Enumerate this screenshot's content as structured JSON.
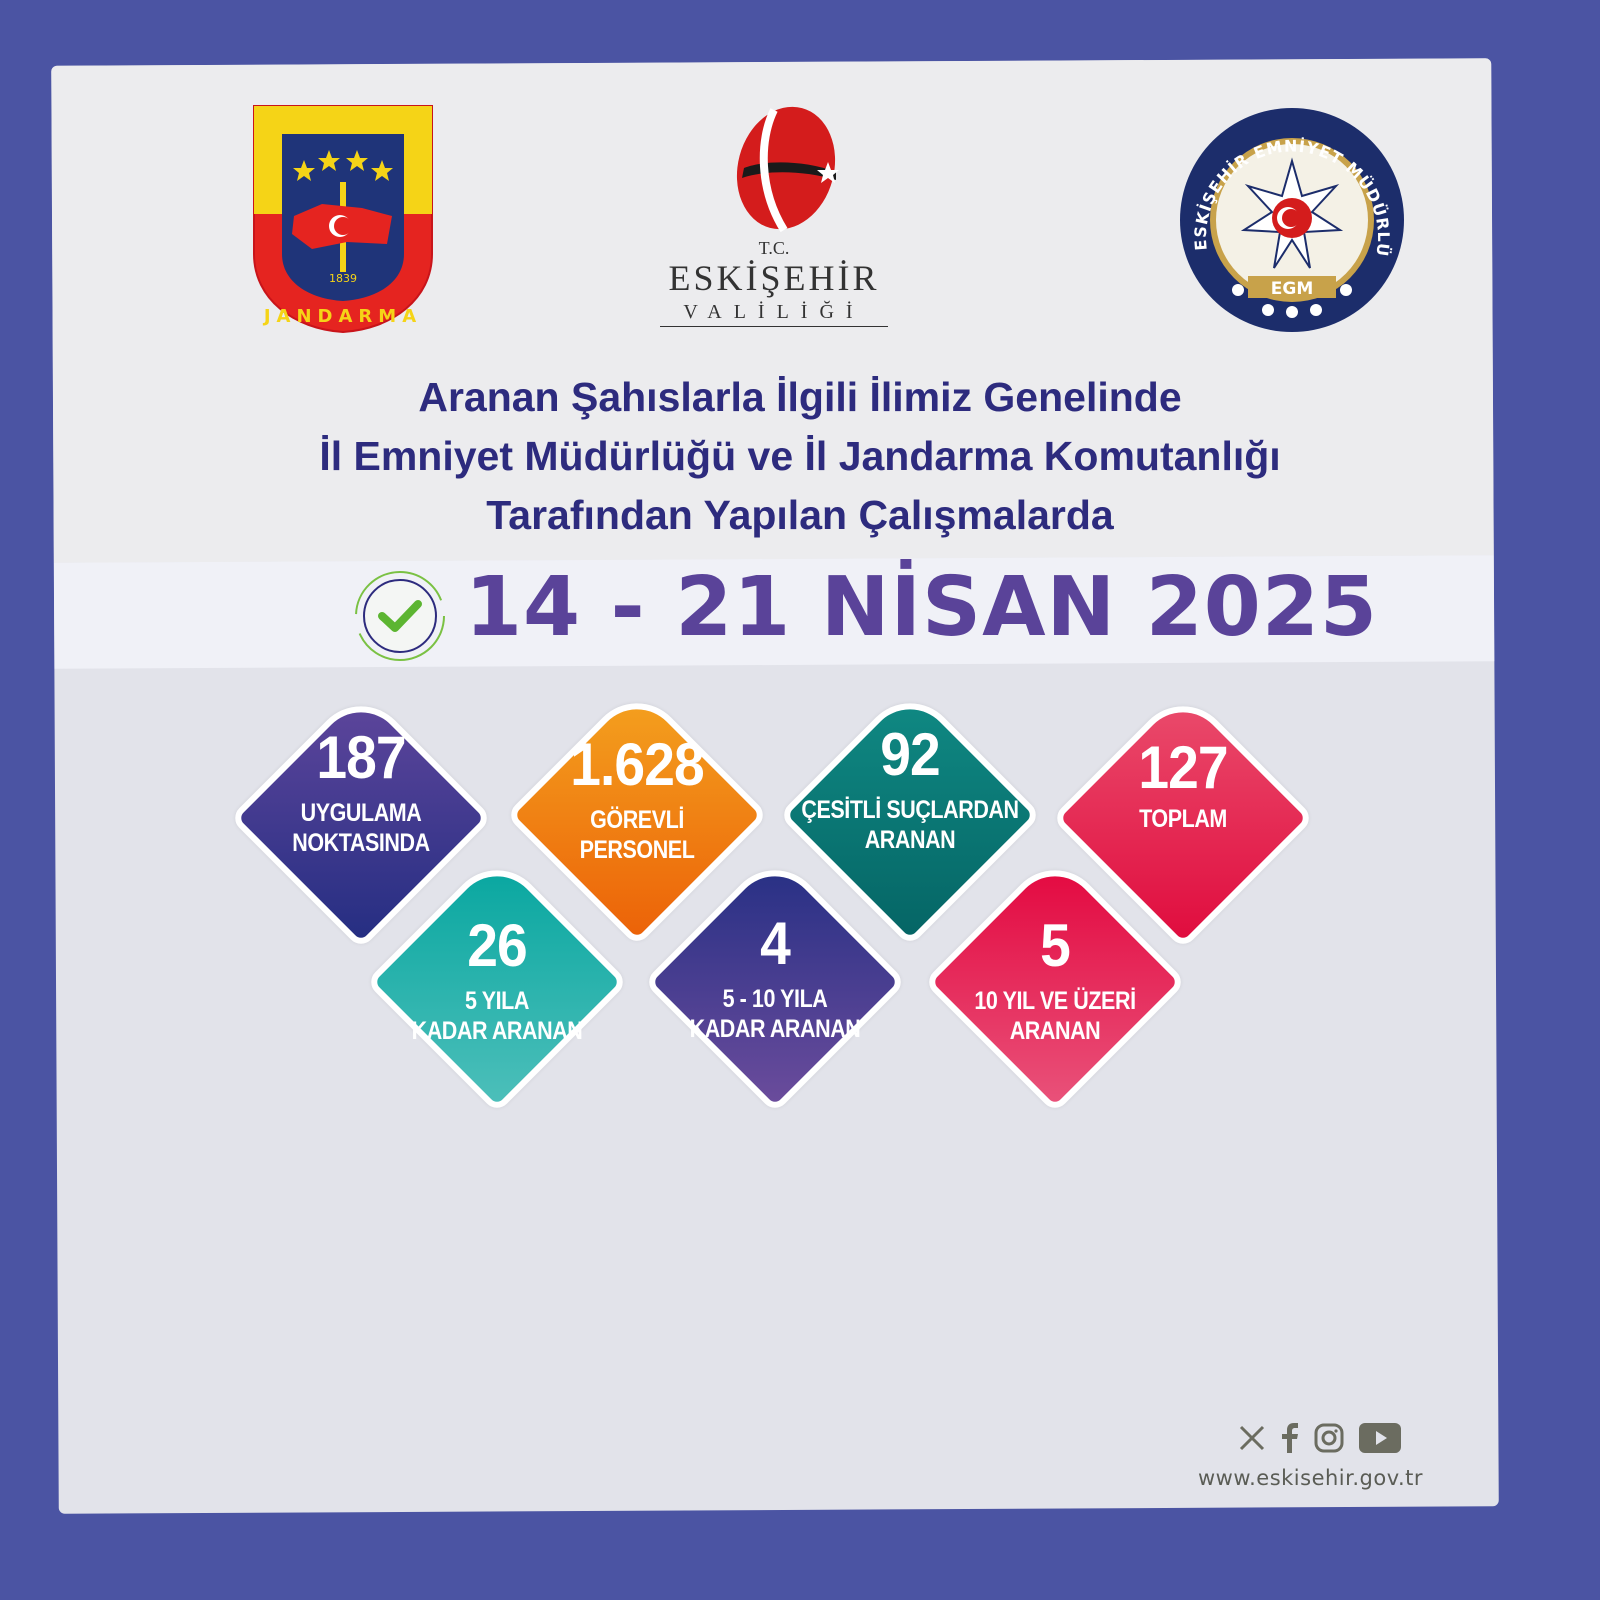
{
  "logos": {
    "left": {
      "name": "Jandarma",
      "text": "JANDARMA",
      "year": "1839"
    },
    "center": {
      "tc": "T.C.",
      "city": "ESKİŞEHİR",
      "office": "VALİLİĞİ"
    },
    "right": {
      "ring_text": "ESKİŞEHİR EMNİYET MÜDÜRLÜĞÜ",
      "abbr": "EGM"
    }
  },
  "title": {
    "lines": [
      "Aranan Şahıslarla İlgili İlimiz Genelinde",
      "İl Emniyet Müdürlüğü ve İl Jandarma Komutanlığı",
      "Tarafından Yapılan Çalışmalarda"
    ]
  },
  "date": "14 - 21 NİSAN 2025",
  "colors": {
    "frame": "#4b54a3",
    "title": "#2d2b7e",
    "date": "#5a4399",
    "check": "#5cb531"
  },
  "stats": [
    {
      "value": "187",
      "label": [
        "UYGULAMA",
        "NOKTASINDA"
      ],
      "color_top": "#5f469c",
      "color_bottom": "#252e82"
    },
    {
      "value": "1.628",
      "label": [
        "GÖREVLİ",
        "PERSONEL"
      ],
      "color_top": "#f4a21f",
      "color_bottom": "#ec6208"
    },
    {
      "value": "92",
      "label": [
        "ÇESİTLİ SUÇLARDAN",
        "ARANAN"
      ],
      "color_top": "#108a84",
      "color_bottom": "#056565"
    },
    {
      "value": "127",
      "label": [
        "TOPLAM"
      ],
      "color_top": "#ea4d6d",
      "color_bottom": "#e00c3e"
    },
    {
      "value": "26",
      "label": [
        "5 YILA",
        "KADAR ARANAN"
      ],
      "color_top": "#06a69f",
      "color_bottom": "#4dbfba"
    },
    {
      "value": "4",
      "label": [
        "5 - 10 YILA",
        "KADAR ARANAN"
      ],
      "color_top": "#252f84",
      "color_bottom": "#6b4c9c"
    },
    {
      "value": "5",
      "label": [
        "10 YIL VE ÜZERİ",
        "ARANAN"
      ],
      "color_top": "#e3063e",
      "color_bottom": "#e9527a"
    }
  ],
  "footer": {
    "social_icons": [
      "x-icon",
      "facebook-icon",
      "instagram-icon",
      "youtube-icon"
    ],
    "url": "www.eskisehir.gov.tr"
  }
}
